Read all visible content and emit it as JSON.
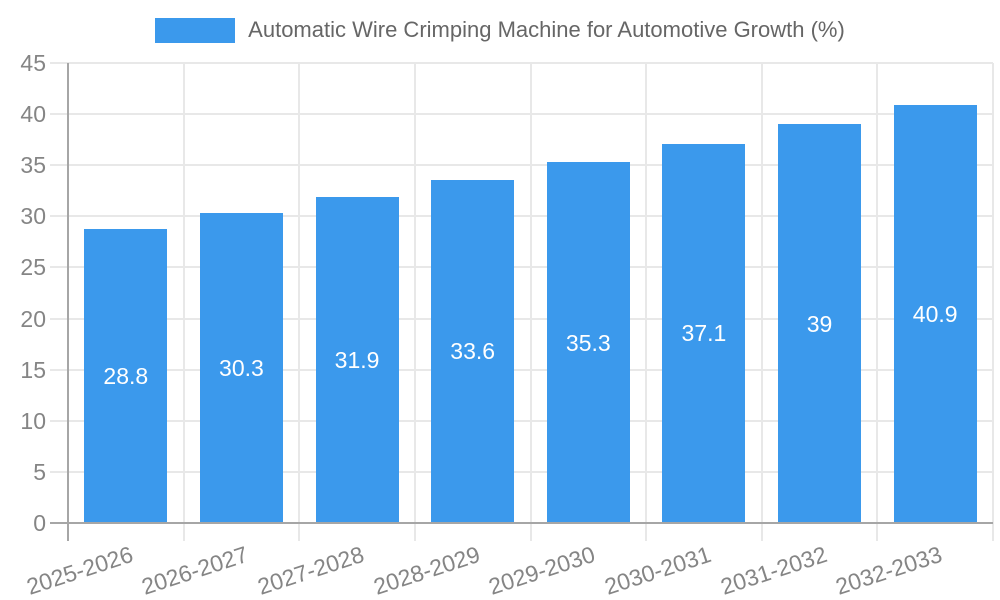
{
  "legend": {
    "label": "Automatic Wire Crimping Machine for Automotive Growth (%)"
  },
  "chart_data": {
    "type": "bar",
    "title": "Automatic Wire Crimping Machine for Automotive Growth (%)",
    "categories": [
      "2025-2026",
      "2026-2027",
      "2027-2028",
      "2028-2029",
      "2029-2030",
      "2030-2031",
      "2031-2032",
      "2032-2033"
    ],
    "values": [
      28.8,
      30.3,
      31.9,
      33.6,
      35.3,
      37.1,
      39,
      40.9
    ],
    "xlabel": "",
    "ylabel": "",
    "ylim": [
      0,
      45
    ],
    "ytick_step": 5,
    "grid": true,
    "legend_position": "top",
    "x_label_rotation_deg": -18
  },
  "colors": {
    "bar": "#3b99ec",
    "grid": "#e8e8e8",
    "axis": "#a6a6a6",
    "tick_text": "#858585",
    "title_text": "#666666",
    "value_label_text": "#ffffff",
    "background": "#ffffff"
  }
}
